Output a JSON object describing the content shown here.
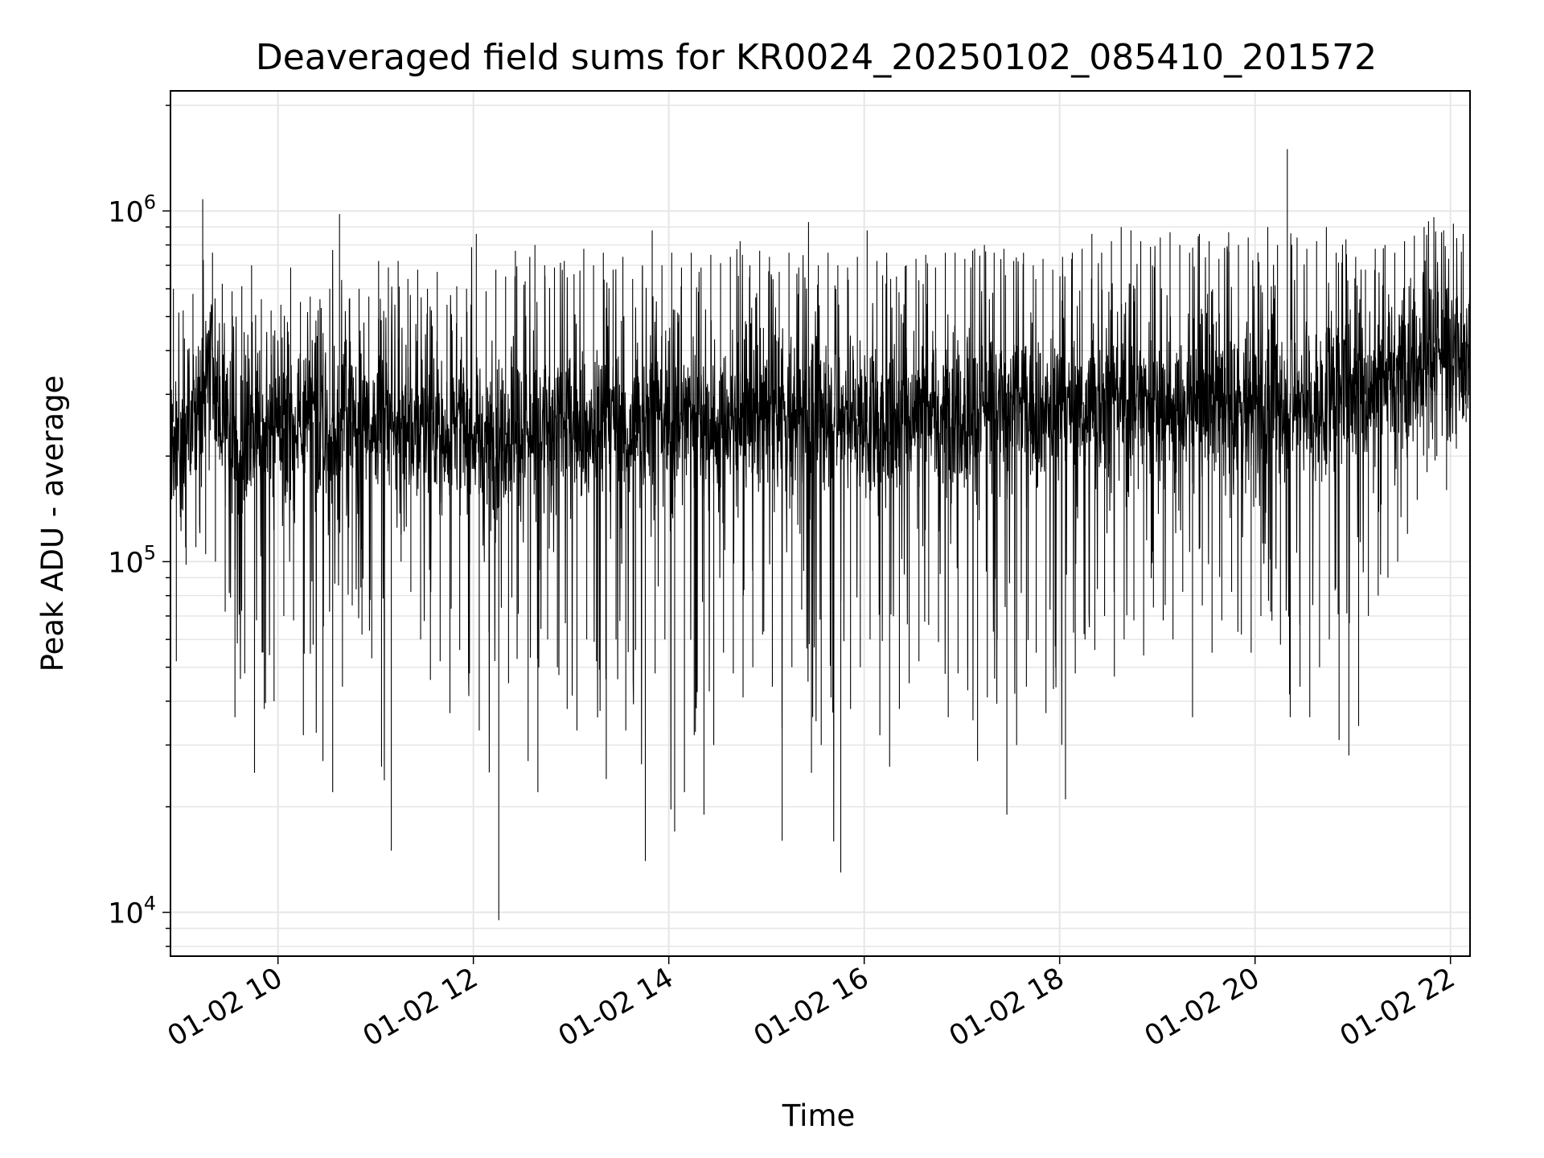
{
  "chart_data": {
    "type": "line",
    "title": "Deaveraged field sums for KR0024_20250102_085410_201572",
    "xlabel": "Time",
    "ylabel": "Peak ADU - average",
    "x_scale": "time",
    "y_scale": "log",
    "xlim": [
      "01-02 08:54",
      "01-02 22:12"
    ],
    "ylim": [
      7500,
      2200000
    ],
    "grid": true,
    "legend": "none",
    "line_color": "#000000",
    "x_ticks": [
      {
        "label": "01-02 10",
        "hour": 10
      },
      {
        "label": "01-02 12",
        "hour": 12
      },
      {
        "label": "01-02 14",
        "hour": 14
      },
      {
        "label": "01-02 16",
        "hour": 16
      },
      {
        "label": "01-02 18",
        "hour": 18
      },
      {
        "label": "01-02 20",
        "hour": 20
      },
      {
        "label": "01-02 22",
        "hour": 22
      }
    ],
    "y_ticks": [
      {
        "base": "10",
        "exp": "4",
        "value": 10000
      },
      {
        "base": "10",
        "exp": "5",
        "value": 100000
      },
      {
        "base": "10",
        "exp": "6",
        "value": 1000000
      }
    ],
    "series": [
      {
        "name": "",
        "x_hours": [
          8.9,
          9.0,
          9.1,
          9.2,
          9.3,
          9.4,
          9.5,
          9.6,
          9.7,
          9.8,
          9.9,
          10.0,
          10.1,
          10.2,
          10.3,
          10.4,
          10.5,
          10.6,
          10.7,
          10.8,
          10.9,
          11.0,
          11.1,
          11.2,
          11.3,
          11.4,
          11.5,
          11.6,
          11.7,
          11.8,
          11.9,
          12.0,
          12.1,
          12.2,
          12.3,
          12.4,
          12.5,
          12.6,
          12.7,
          12.8,
          12.9,
          13.0,
          13.1,
          13.2,
          13.3,
          13.4,
          13.5,
          13.6,
          13.7,
          13.8,
          13.9,
          14.0,
          14.1,
          14.2,
          14.3,
          14.4,
          14.5,
          14.6,
          14.7,
          14.8,
          14.9,
          15.0,
          15.1,
          15.2,
          15.3,
          15.4,
          15.5,
          15.6,
          15.7,
          15.8,
          15.9,
          16.0,
          16.1,
          16.2,
          16.3,
          16.4,
          16.5,
          16.6,
          16.7,
          16.8,
          16.9,
          17.0,
          17.1,
          17.2,
          17.3,
          17.4,
          17.5,
          17.6,
          17.7,
          17.8,
          17.9,
          18.0,
          18.1,
          18.2,
          18.3,
          18.4,
          18.5,
          18.6,
          18.7,
          18.8,
          18.9,
          19.0,
          19.1,
          19.2,
          19.3,
          19.4,
          19.5,
          19.6,
          19.7,
          19.8,
          19.9,
          20.0,
          20.1,
          20.2,
          20.3,
          20.4,
          20.5,
          20.6,
          20.7,
          20.8,
          20.9,
          21.0,
          21.1,
          21.2,
          21.3,
          21.4,
          21.5,
          21.6,
          21.7,
          21.8,
          21.9,
          22.0,
          22.1,
          22.2
        ],
        "values": [
          250000,
          230000,
          270000,
          300000,
          380000,
          260000,
          240000,
          220000,
          210000,
          250000,
          230000,
          240000,
          260000,
          230000,
          250000,
          240000,
          220000,
          240000,
          250000,
          230000,
          240000,
          260000,
          280000,
          250000,
          230000,
          240000,
          250000,
          230000,
          220000,
          240000,
          230000,
          220000,
          240000,
          210000,
          230000,
          250000,
          240000,
          220000,
          230000,
          250000,
          240000,
          260000,
          250000,
          230000,
          250000,
          260000,
          240000,
          230000,
          250000,
          270000,
          260000,
          240000,
          250000,
          280000,
          260000,
          250000,
          240000,
          260000,
          250000,
          270000,
          250000,
          260000,
          280000,
          250000,
          260000,
          270000,
          250000,
          280000,
          260000,
          270000,
          260000,
          250000,
          240000,
          220000,
          250000,
          260000,
          270000,
          280000,
          270000,
          260000,
          280000,
          270000,
          260000,
          280000,
          270000,
          260000,
          280000,
          290000,
          270000,
          260000,
          280000,
          270000,
          260000,
          280000,
          270000,
          290000,
          280000,
          300000,
          280000,
          290000,
          300000,
          280000,
          290000,
          270000,
          280000,
          300000,
          280000,
          290000,
          270000,
          260000,
          280000,
          290000,
          270000,
          300000,
          280000,
          290000,
          300000,
          260000,
          280000,
          310000,
          300000,
          320000,
          300000,
          310000,
          330000,
          350000,
          370000,
          380000,
          400000,
          420000,
          390000,
          380000,
          370000,
          400000
        ]
      }
    ],
    "upper_envelope": [
      600000,
      520000,
      580000,
      1080000,
      760000,
      620000,
      590000,
      610000,
      700000,
      560000,
      520000,
      540000,
      690000,
      550000,
      570000,
      560000,
      600000,
      980000,
      560000,
      600000,
      570000,
      720000,
      690000,
      720000,
      640000,
      680000,
      600000,
      670000,
      540000,
      610000,
      600000,
      860000,
      590000,
      680000,
      650000,
      770000,
      630000,
      800000,
      700000,
      690000,
      720000,
      660000,
      780000,
      700000,
      760000,
      680000,
      740000,
      640000,
      700000,
      880000,
      700000,
      760000,
      690000,
      760000,
      690000,
      750000,
      710000,
      740000,
      820000,
      700000,
      770000,
      740000,
      670000,
      760000,
      690000,
      930000,
      700000,
      760000,
      700000,
      690000,
      740000,
      880000,
      720000,
      760000,
      650000,
      700000,
      730000,
      750000,
      690000,
      760000,
      760000,
      730000,
      780000,
      800000,
      760000,
      780000,
      720000,
      760000,
      700000,
      730000,
      680000,
      740000,
      760000,
      780000,
      860000,
      760000,
      820000,
      900000,
      880000,
      820000,
      790000,
      840000,
      870000,
      800000,
      760000,
      860000,
      820000,
      730000,
      870000,
      800000,
      840000,
      760000,
      900000,
      800000,
      1500000,
      840000,
      780000,
      820000,
      900000,
      760000,
      830000,
      740000,
      680000,
      780000,
      800000,
      760000,
      820000,
      850000,
      900000,
      960000,
      880000,
      920000,
      860000,
      800000
    ],
    "lower_envelope": [
      52000,
      98000,
      110000,
      105000,
      100000,
      72000,
      36000,
      48000,
      25000,
      38000,
      40000,
      70000,
      68000,
      32000,
      58000,
      27000,
      22000,
      44000,
      75000,
      62000,
      53000,
      26000,
      15000,
      100000,
      82000,
      60000,
      46000,
      52000,
      37000,
      56000,
      48000,
      33000,
      63000,
      9500,
      45000,
      71000,
      27000,
      22000,
      60000,
      50000,
      38000,
      33000,
      60000,
      52000,
      24000,
      60000,
      33000,
      56000,
      14000,
      48000,
      60000,
      17000,
      22000,
      32000,
      19000,
      30000,
      55000,
      48000,
      41000,
      50000,
      62000,
      44000,
      16000,
      50000,
      73000,
      25000,
      30000,
      41000,
      13000,
      38000,
      50000,
      60000,
      32000,
      26000,
      38000,
      45000,
      52000,
      66000,
      59000,
      36000,
      48000,
      50000,
      27000,
      41000,
      60000,
      19000,
      30000,
      44000,
      55000,
      37000,
      50000,
      21000,
      48000,
      60000,
      56000,
      70000,
      47000,
      60000,
      68000,
      54000,
      74000,
      68000,
      60000,
      82000,
      36000,
      75000,
      55000,
      68000,
      82000,
      62000,
      55000,
      70000,
      72000,
      58000,
      36000,
      44000,
      36000,
      50000,
      60000,
      31000,
      28000,
      34000,
      70000,
      80000,
      90000,
      100000,
      120000,
      150000,
      180000,
      200000,
      160000,
      210000,
      250000,
      280000
    ]
  }
}
